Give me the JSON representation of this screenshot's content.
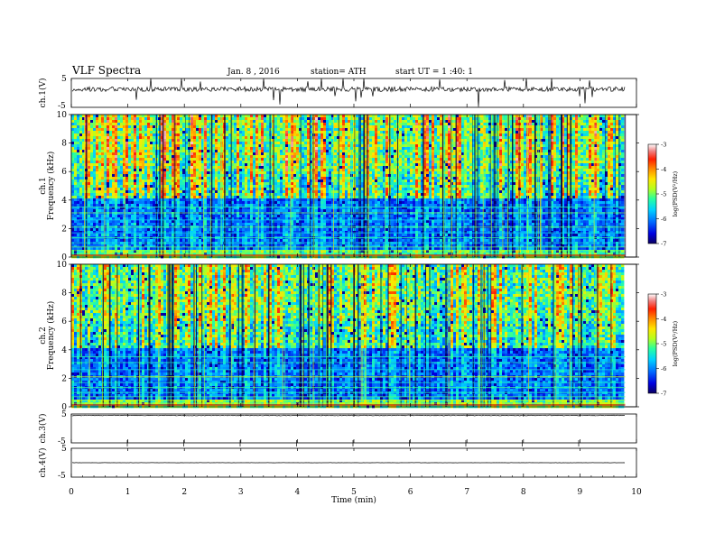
{
  "header": {
    "title": "VLF Spectra",
    "date": "Jan. 8 , 2016",
    "station": "station= ATH",
    "start": "start UT = 1 :40: 1"
  },
  "chart_data": {
    "type": "heatmap",
    "x_axis": {
      "label": "Time (min)",
      "range": [
        0,
        10
      ],
      "ticks": [
        0,
        1,
        2,
        3,
        4,
        5,
        6,
        7,
        8,
        9,
        10
      ],
      "tick_labels": [
        "0",
        "1",
        "2",
        "3",
        "4",
        "5",
        "6",
        "7",
        "8",
        "9",
        "10"
      ],
      "data_end": 9.8
    },
    "panels": [
      {
        "id": "ch1-waveform",
        "type": "line",
        "ylabel": "ch.1(V)",
        "ylim": [
          -5,
          5
        ],
        "tick_labels": [
          "5",
          "-5"
        ],
        "baseline": 1.3
      },
      {
        "id": "ch1-spectrogram",
        "type": "heatmap",
        "ylabel_channel": "ch.1",
        "ylabel": "Frequency (kHz)",
        "ylim": [
          0,
          10
        ],
        "yticks": [
          0,
          2,
          4,
          6,
          8,
          10
        ],
        "tick_labels": [
          "0",
          "2",
          "4",
          "6",
          "8",
          "10"
        ],
        "colorbar": {
          "label": "log(PSD(V²/Hz)",
          "range": [
            -7,
            -3
          ],
          "ticks": [
            -7,
            -6,
            -5,
            -4,
            -3
          ],
          "tick_labels": [
            "-7",
            "-6",
            "-5",
            "-4",
            "-3"
          ]
        }
      },
      {
        "id": "ch2-spectrogram",
        "type": "heatmap",
        "ylabel_channel": "ch.2",
        "ylabel": "Frequency (kHz)",
        "ylim": [
          0,
          10
        ],
        "yticks": [
          0,
          2,
          4,
          6,
          8,
          10
        ],
        "tick_labels": [
          "0",
          "2",
          "4",
          "6",
          "8",
          "10"
        ],
        "colorbar": {
          "label": "log(PSD(V²/Hz)",
          "range": [
            -7,
            -3
          ],
          "ticks": [
            -7,
            -6,
            -5,
            -4,
            -3
          ],
          "tick_labels": [
            "-7",
            "-6",
            "-5",
            "-4",
            "-3"
          ]
        }
      },
      {
        "id": "ch3-waveform",
        "type": "line",
        "ylabel": "ch.3(V)",
        "ylim": [
          -5,
          5
        ],
        "tick_labels": [
          "5",
          "-5"
        ],
        "baseline": 4.5
      },
      {
        "id": "ch4-waveform",
        "type": "line",
        "ylabel": "ch.4(V)",
        "ylim": [
          -5,
          5
        ],
        "tick_labels": [
          "5",
          "-5"
        ],
        "baseline": 0
      }
    ]
  }
}
